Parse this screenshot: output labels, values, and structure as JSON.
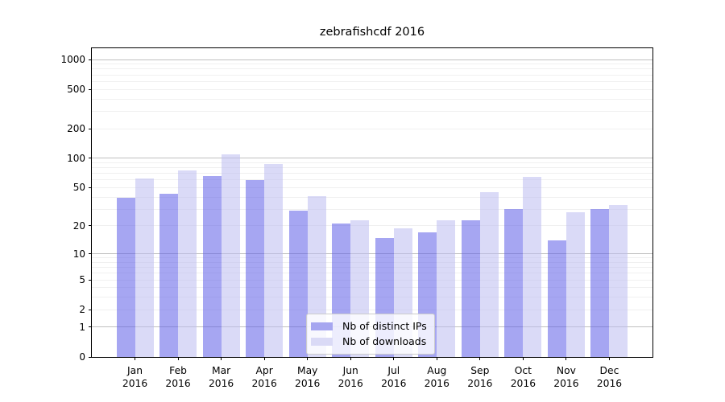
{
  "chart_data": {
    "type": "bar",
    "title": "zebrafishcdf 2016",
    "categories": [
      "Jan",
      "Feb",
      "Mar",
      "Apr",
      "May",
      "Jun",
      "Jul",
      "Aug",
      "Sep",
      "Oct",
      "Nov",
      "Dec"
    ],
    "category_year": "2016",
    "series": [
      {
        "name": "Nb of distinct IPs",
        "color": "#a6a6f0",
        "fill": "rgba(93,93,231,0.55)",
        "values": [
          39,
          43,
          66,
          60,
          29,
          21,
          15,
          17,
          23,
          30,
          14,
          30
        ]
      },
      {
        "name": "Nb of downloads",
        "color": "#dadaf6",
        "fill": "rgba(188,188,240,0.55)",
        "values": [
          62,
          75,
          109,
          87,
          41,
          23,
          19,
          23,
          45,
          64,
          28,
          33
        ]
      }
    ],
    "yscale": "log1p",
    "ylim": [
      0,
      1300
    ],
    "yticks": [
      0,
      1,
      2,
      5,
      10,
      20,
      50,
      100,
      200,
      500,
      1000
    ],
    "minor_gridlines": [
      2,
      3,
      4,
      5,
      6,
      7,
      8,
      9,
      20,
      30,
      40,
      50,
      60,
      70,
      80,
      90,
      200,
      300,
      400,
      500,
      600,
      700,
      800,
      900
    ],
    "major_gridlines": [
      1,
      10,
      100,
      1000
    ],
    "grid": true,
    "legend_position": "lower center",
    "colors": {
      "major_grid": "#bfbfbf",
      "minor_grid": "#f0f0f0",
      "spine": "#000000",
      "text": "#000000"
    }
  }
}
